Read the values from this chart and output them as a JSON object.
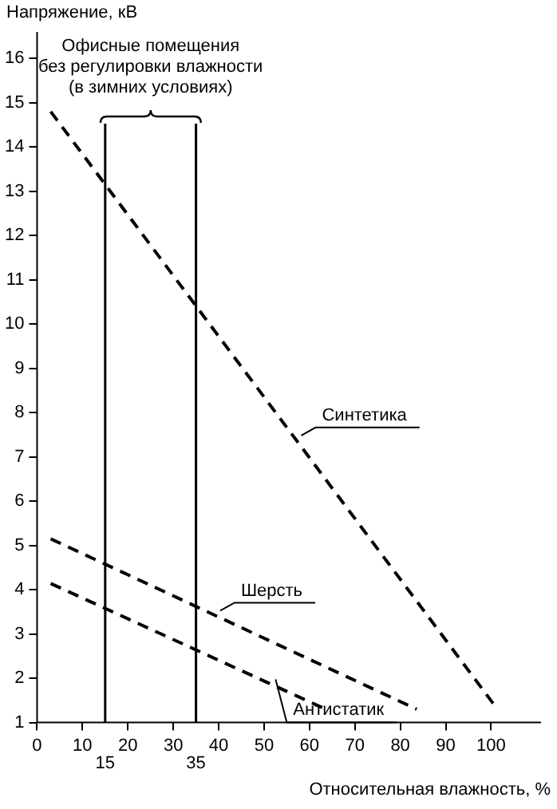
{
  "chart_data": {
    "type": "line",
    "xlabel": "Относительная влажность, %",
    "ylabel": "Напряжение, кВ",
    "xlim": [
      0,
      111
    ],
    "xticks": [
      0,
      10,
      20,
      30,
      40,
      50,
      60,
      70,
      80,
      90,
      100
    ],
    "ylim": [
      1,
      16.6
    ],
    "yticks": [
      1,
      2,
      3,
      4,
      5,
      6,
      7,
      8,
      9,
      10,
      11,
      12,
      13,
      14,
      15,
      16
    ],
    "series": [
      {
        "name": "Синтетика",
        "color": "#000000",
        "x": [
          3,
          101.4
        ],
        "values": [
          14.8,
          1.3
        ]
      },
      {
        "name": "Шерсть",
        "color": "#000000",
        "x": [
          3,
          83.6
        ],
        "values": [
          5.15,
          1.3
        ]
      },
      {
        "name": "Антистатик",
        "color": "#000000",
        "x": [
          3,
          63.6
        ],
        "values": [
          4.14,
          1.3
        ]
      }
    ],
    "ref_lines": [
      {
        "axis": "x",
        "value": 15,
        "label": "15"
      },
      {
        "axis": "x",
        "value": 35,
        "label": "35"
      }
    ],
    "annotations": [
      "Офисные помещения\nбез регулировки влажности\n(в зимних условиях)"
    ],
    "grid": false,
    "legend": false,
    "marker": "none",
    "line_style": "dashed"
  }
}
